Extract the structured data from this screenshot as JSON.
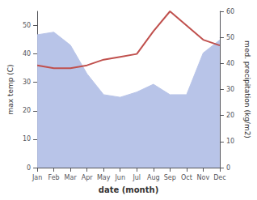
{
  "chart_data": {
    "type": "line",
    "xlabel": "date (month)",
    "ylabel": "max temp (C)",
    "y2label": "med. precipitation (kg/m2)",
    "categories": [
      "Jan",
      "Feb",
      "Mar",
      "Apr",
      "May",
      "Jun",
      "Jul",
      "Aug",
      "Sep",
      "Oct",
      "Nov",
      "Dec"
    ],
    "series": [
      {
        "type": "area",
        "axis": "y2",
        "color": "#b8c4e8",
        "values": [
          51,
          52,
          47,
          36,
          28,
          27,
          29,
          32,
          28,
          28,
          44,
          49
        ]
      },
      {
        "type": "line",
        "color": "#c0504d",
        "values": [
          36,
          35,
          35,
          36,
          38,
          39,
          40,
          48,
          55,
          50,
          45,
          43
        ]
      }
    ],
    "ylim": [
      0,
      55
    ],
    "yticks": [
      0,
      10,
      20,
      30,
      40,
      50
    ],
    "y2lim": [
      0,
      60
    ],
    "y2ticks": [
      0,
      10,
      20,
      30,
      40,
      50,
      60
    ],
    "grid": false
  }
}
